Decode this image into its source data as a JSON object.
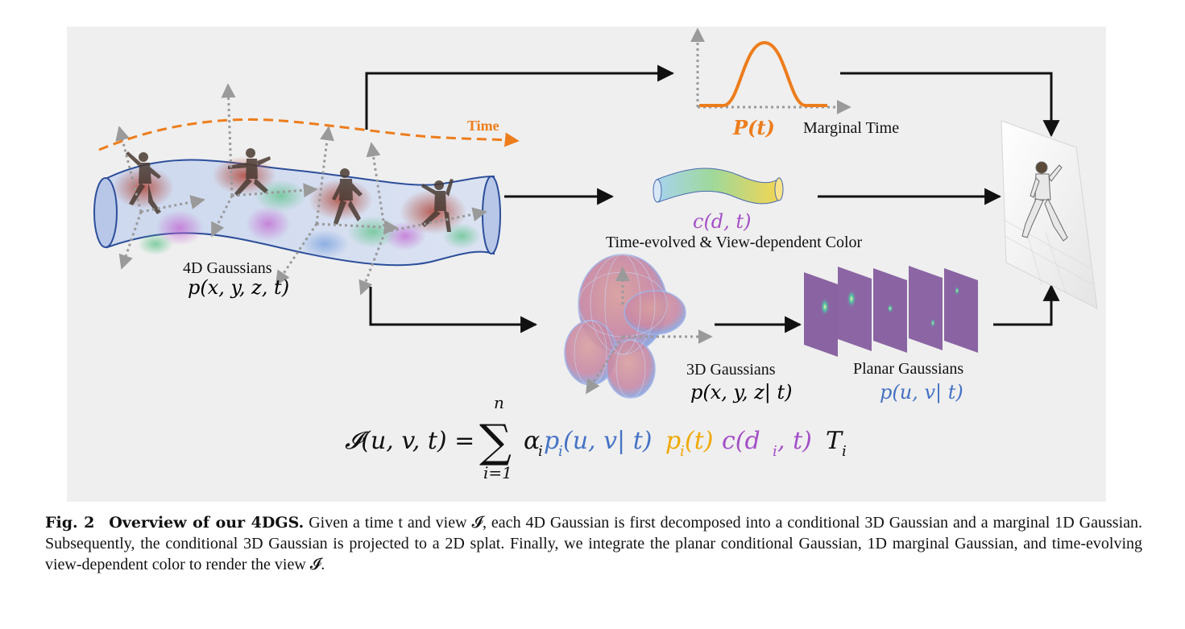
{
  "figure": {
    "time_label": "Time",
    "marginal": {
      "symbol": "P(t)",
      "label": "Marginal Time"
    },
    "color": {
      "symbol": "c(d, t)",
      "label": "Time-evolved & View-dependent Color"
    },
    "gaussians_4d": {
      "label": "4D Gaussians",
      "symbol": "p(x, y, z, t)"
    },
    "gaussians_3d": {
      "label": "3D Gaussians",
      "symbol": "p(x, y, z| t)"
    },
    "planar": {
      "label": "Planar Gaussians",
      "symbol": "p(u, v| t)"
    },
    "equation": {
      "lhs": "𝓘(u, v, t) =",
      "sum_top": "n",
      "sum_bottom": "i=1",
      "alpha": "α",
      "alpha_sub": "i",
      "p_uv": "p",
      "p_uv_sub": "i",
      "p_uv_args": "(u, v| t)",
      "p_t": "p",
      "p_t_sub": "i",
      "p_t_args": "(t)",
      "c": "c(d",
      "c_sub": "i",
      "c_args": ", t)",
      "T": "T",
      "T_sub": "i"
    },
    "colors": {
      "orange": "#ed7d1c",
      "blue": "#4472c4",
      "purple": "#a34fc7",
      "yellow": "#f0a800",
      "tube": "#2c4e9a"
    }
  },
  "caption": {
    "number": "Fig. 2",
    "title": "Overview of our 4DGS.",
    "text": "Given a time t and view 𝓘, each 4D Gaussian is first decomposed into a conditional 3D Gaussian and a marginal 1D Gaussian. Subsequently, the conditional 3D Gaussian is projected to a 2D splat. Finally, we integrate the planar conditional Gaussian, 1D marginal Gaussian, and time-evolving view-dependent color to render the view 𝓘."
  }
}
